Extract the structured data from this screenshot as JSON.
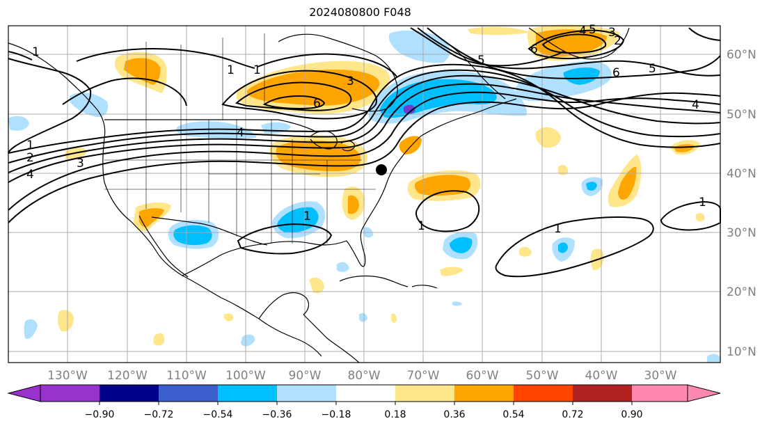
{
  "title": "2024080800 F048",
  "map": {
    "lon_labels": [
      "130°W",
      "120°W",
      "110°W",
      "100°W",
      "90°W",
      "80°W",
      "70°W",
      "60°W",
      "50°W",
      "40°W",
      "30°W"
    ],
    "lat_labels": [
      "60°N",
      "50°N",
      "40°N",
      "30°N",
      "20°N",
      "10°N"
    ],
    "contour_labels": [
      "1",
      "2",
      "3",
      "4",
      "5",
      "6",
      "1",
      "1",
      "3",
      "6",
      "5",
      "4",
      "1",
      "1",
      "6",
      "5",
      "4",
      "3",
      "2",
      "1",
      "4",
      "1",
      "1"
    ]
  },
  "colorbar": {
    "tick_labels": [
      "−0.90",
      "−0.72",
      "−0.54",
      "−0.36",
      "−0.18",
      "0.18",
      "0.36",
      "0.54",
      "0.72",
      "0.90"
    ],
    "colors": [
      "#9932cc",
      "#00008b",
      "#3a5fcd",
      "#00bfff",
      "#b0e0ff",
      "#ffffff",
      "#ffe68a",
      "#ffa500",
      "#ff4500",
      "#b22222",
      "#ff88b0"
    ]
  },
  "colors": {
    "positive_light": "#ffe68a",
    "positive_strong": "#ffa500",
    "negative_light": "#b0e0ff",
    "negative_strong": "#00bfff",
    "negative_deep": "#6a3fcf",
    "grid": "#a9a9a9",
    "tick_text": "#808080"
  }
}
